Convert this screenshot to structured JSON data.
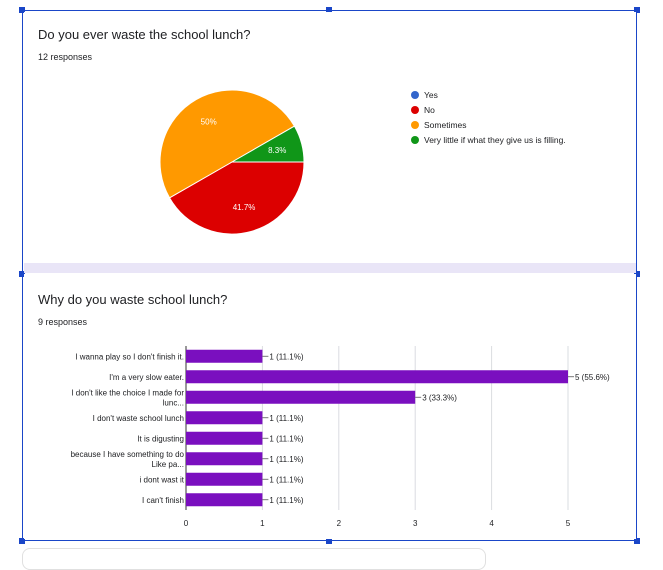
{
  "question1": {
    "title": "Do you ever waste the school lunch?",
    "responses": "12 responses",
    "legend": [
      {
        "label": "Yes",
        "color": "#3366cc"
      },
      {
        "label": "No",
        "color": "#dc0000"
      },
      {
        "label": "Sometimes",
        "color": "#ff9900"
      },
      {
        "label": "Very little if what they give us is filling.",
        "color": "#109618"
      }
    ]
  },
  "question2": {
    "title": "Why do you waste school lunch?",
    "responses": "9 responses"
  },
  "chart_data": [
    {
      "type": "pie",
      "title": "Do you ever waste the school lunch?",
      "categories": [
        "Yes",
        "No",
        "Sometimes",
        "Very little if what they give us is filling."
      ],
      "values": [
        0,
        41.7,
        50,
        8.3
      ],
      "labels": [
        "",
        "41.7%",
        "50%",
        "8.3%"
      ],
      "colors": [
        "#3366cc",
        "#dc0000",
        "#ff9900",
        "#109618"
      ],
      "legend_position": "right"
    },
    {
      "type": "bar",
      "orientation": "horizontal",
      "title": "Why do you waste school lunch?",
      "categories": [
        [
          "I wanna play so I don't finish it."
        ],
        [
          "I'm a very slow eater."
        ],
        [
          "I don't like the choice I made for",
          "lunc..."
        ],
        [
          "I don't waste school lunch"
        ],
        [
          "It is digusting"
        ],
        [
          "because I have something to do",
          "Like pa..."
        ],
        [
          "i dont wast it"
        ],
        [
          "I can't finish"
        ]
      ],
      "values": [
        1,
        5,
        3,
        1,
        1,
        1,
        1,
        1
      ],
      "value_labels": [
        "1 (11.1%)",
        "5 (55.6%)",
        "3 (33.3%)",
        "1 (11.1%)",
        "1 (11.1%)",
        "1 (11.1%)",
        "1 (11.1%)",
        "1 (11.1%)"
      ],
      "xlim": [
        0,
        5
      ],
      "xticks": [
        "0",
        "1",
        "2",
        "3",
        "4",
        "5"
      ],
      "color": "#7a0fbf",
      "grid": true
    }
  ]
}
